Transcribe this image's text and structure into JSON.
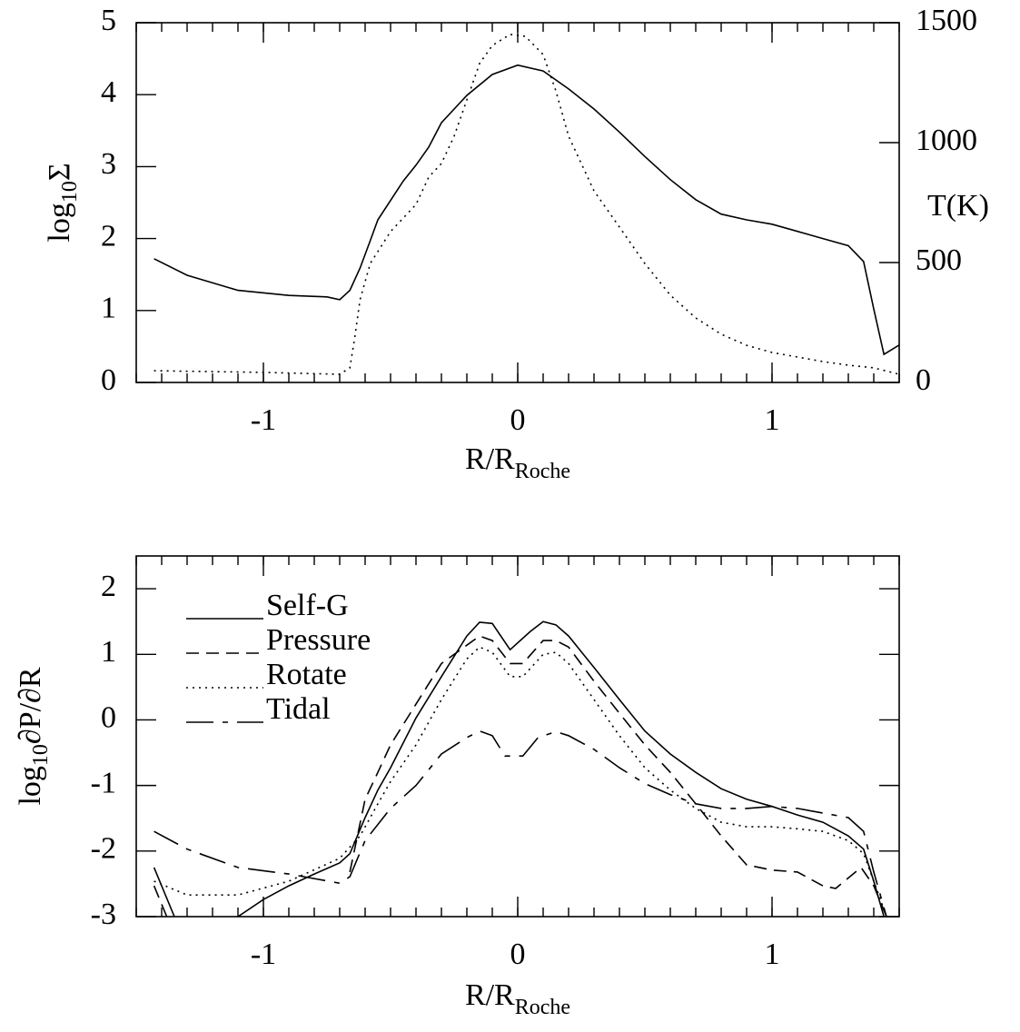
{
  "chart_data": [
    {
      "type": "line",
      "xlabel": {
        "base": "R/R",
        "sub": "Roche"
      },
      "ylabel": {
        "base": "log",
        "sub": "10",
        "rest": "Σ"
      },
      "y2label": "T(K)",
      "xlim": [
        -1.5,
        1.5
      ],
      "xticks": [
        -1,
        0,
        1
      ],
      "xminor_step": 0.1,
      "ylim": [
        0,
        5
      ],
      "yticks": [
        0,
        1,
        2,
        3,
        4,
        5
      ],
      "y2lim": [
        0,
        1500
      ],
      "y2ticks": [
        0,
        500,
        1000,
        1500
      ],
      "series": [
        {
          "color": "#000000",
          "linestyle": "solid",
          "axis": "y",
          "x": [
            -1.43,
            -1.3,
            -1.1,
            -0.9,
            -0.75,
            -0.7,
            -0.66,
            -0.62,
            -0.58,
            -0.55,
            -0.45,
            -0.4,
            -0.35,
            -0.3,
            -0.2,
            -0.1,
            0,
            0.1,
            0.2,
            0.3,
            0.4,
            0.5,
            0.6,
            0.7,
            0.8,
            0.9,
            1.0,
            1.1,
            1.2,
            1.3,
            1.36,
            1.4,
            1.44,
            1.5
          ],
          "values": [
            1.72,
            1.49,
            1.28,
            1.21,
            1.19,
            1.15,
            1.28,
            1.59,
            1.97,
            2.26,
            2.8,
            3.02,
            3.27,
            3.61,
            3.99,
            4.28,
            4.41,
            4.33,
            4.08,
            3.8,
            3.48,
            3.14,
            2.82,
            2.54,
            2.34,
            2.26,
            2.2,
            2.1,
            2.0,
            1.9,
            1.68,
            1.02,
            0.39,
            0.52
          ]
        },
        {
          "color": "#000000",
          "linestyle": "dotted",
          "axis": "y2",
          "x": [
            -1.43,
            -1,
            -0.7,
            -0.66,
            -0.64,
            -0.62,
            -0.58,
            -0.5,
            -0.4,
            -0.35,
            -0.3,
            -0.25,
            -0.2,
            -0.15,
            -0.1,
            -0.03,
            0.03,
            0.1,
            0.15,
            0.2,
            0.3,
            0.4,
            0.5,
            0.6,
            0.7,
            0.8,
            0.9,
            1.0,
            1.1,
            1.2,
            1.3,
            1.4,
            1.5
          ],
          "values": [
            49,
            42,
            34,
            61,
            193,
            345,
            496,
            629,
            742,
            856,
            913,
            1027,
            1178,
            1330,
            1405,
            1451,
            1443,
            1367,
            1216,
            1027,
            799,
            648,
            496,
            364,
            269,
            201,
            155,
            125,
            106,
            87,
            72,
            61,
            34
          ]
        }
      ]
    },
    {
      "type": "line",
      "xlabel": {
        "base": "R/R",
        "sub": "Roche"
      },
      "ylabel": {
        "base": "log",
        "sub": "10",
        "rest": "∂P/∂R"
      },
      "xlim": [
        -1.5,
        1.5
      ],
      "xticks": [
        -1,
        0,
        1
      ],
      "xminor_step": 0.1,
      "ylim": [
        -3,
        2.5
      ],
      "yticks": [
        -3,
        -2,
        -1,
        0,
        1,
        2
      ],
      "legend": "upper left",
      "series": [
        {
          "name": "Self-G",
          "color": "#000000",
          "linestyle": "solid",
          "x": [
            -1.43,
            -1.35,
            -1.2,
            -1.1,
            -1.0,
            -0.9,
            -0.8,
            -0.7,
            -0.66,
            -0.6,
            -0.55,
            -0.5,
            -0.4,
            -0.3,
            -0.2,
            -0.15,
            -0.1,
            -0.03,
            0.05,
            0.1,
            0.15,
            0.2,
            0.3,
            0.4,
            0.5,
            0.6,
            0.7,
            0.8,
            0.9,
            1.0,
            1.1,
            1.2,
            1.3,
            1.36,
            1.4,
            1.44
          ],
          "values": [
            -2.25,
            -3,
            null,
            -3,
            -2.74,
            -2.53,
            -2.35,
            -2.18,
            -2.04,
            -1.49,
            -1.07,
            -0.73,
            0.03,
            0.66,
            1.28,
            1.49,
            1.47,
            1.07,
            1.35,
            1.5,
            1.45,
            1.28,
            0.8,
            0.31,
            -0.17,
            -0.52,
            -0.8,
            -1.05,
            -1.21,
            -1.32,
            -1.45,
            -1.56,
            -1.77,
            -1.97,
            -2.46,
            -3
          ]
        },
        {
          "name": "Pressure",
          "color": "#000000",
          "linestyle": "dashed",
          "x": [
            -1.43,
            -1.38,
            -1.0,
            -0.66,
            -0.6,
            -0.55,
            -0.5,
            -0.4,
            -0.3,
            -0.2,
            -0.15,
            -0.1,
            -0.03,
            0.02,
            0.1,
            0.15,
            0.2,
            0.3,
            0.4,
            0.5,
            0.6,
            0.7,
            0.8,
            0.9,
            1.0,
            1.1,
            1.2,
            1.25,
            1.35,
            1.4,
            1.45
          ],
          "values": [
            -2.53,
            -3,
            null,
            -2.32,
            -1.21,
            -0.8,
            -0.38,
            0.24,
            0.86,
            1.14,
            1.28,
            1.21,
            0.86,
            0.86,
            1.21,
            1.21,
            1.11,
            0.59,
            0.1,
            -0.38,
            -0.8,
            -1.28,
            -1.77,
            -2.21,
            -2.29,
            -2.32,
            -2.53,
            -2.57,
            -2.25,
            -2.53,
            -3
          ]
        },
        {
          "name": "Rotate",
          "color": "#000000",
          "linestyle": "dotted",
          "x": [
            -1.43,
            -1.3,
            -1.1,
            -0.9,
            -0.7,
            -0.62,
            -0.55,
            -0.5,
            -0.4,
            -0.3,
            -0.2,
            -0.15,
            -0.1,
            -0.03,
            0.02,
            0.1,
            0.15,
            0.2,
            0.3,
            0.4,
            0.5,
            0.6,
            0.7,
            0.8,
            0.9,
            1.0,
            1.1,
            1.2,
            1.3,
            1.36,
            1.42,
            1.45
          ],
          "values": [
            -2.46,
            -2.67,
            -2.67,
            -2.46,
            -2.11,
            -1.77,
            -1.28,
            -0.94,
            -0.38,
            0.31,
            0.93,
            1.11,
            1.03,
            0.66,
            0.66,
            1.0,
            1.03,
            0.86,
            0.31,
            -0.24,
            -0.73,
            -1.07,
            -1.35,
            -1.56,
            -1.63,
            -1.63,
            -1.66,
            -1.7,
            -1.84,
            -2.04,
            -2.67,
            -3
          ]
        },
        {
          "name": "Tidal",
          "color": "#000000",
          "linestyle": "longdash",
          "x": [
            -1.43,
            -1.3,
            -1.1,
            -0.9,
            -0.7,
            -0.66,
            -0.6,
            -0.5,
            -0.4,
            -0.3,
            -0.2,
            -0.15,
            -0.1,
            -0.05,
            0.02,
            0.08,
            0.15,
            0.2,
            0.3,
            0.4,
            0.5,
            0.6,
            0.7,
            0.8,
            0.9,
            1.0,
            1.1,
            1.2,
            1.3,
            1.36,
            1.4,
            1.45
          ],
          "values": [
            -1.7,
            -1.97,
            -2.25,
            -2.35,
            -2.49,
            -2.39,
            -1.84,
            -1.35,
            -1.0,
            -0.52,
            -0.27,
            -0.17,
            -0.24,
            -0.55,
            -0.55,
            -0.27,
            -0.18,
            -0.24,
            -0.45,
            -0.73,
            -0.97,
            -1.14,
            -1.28,
            -1.35,
            -1.35,
            -1.32,
            -1.35,
            -1.42,
            -1.49,
            -1.7,
            -2.32,
            -3
          ]
        }
      ]
    }
  ]
}
